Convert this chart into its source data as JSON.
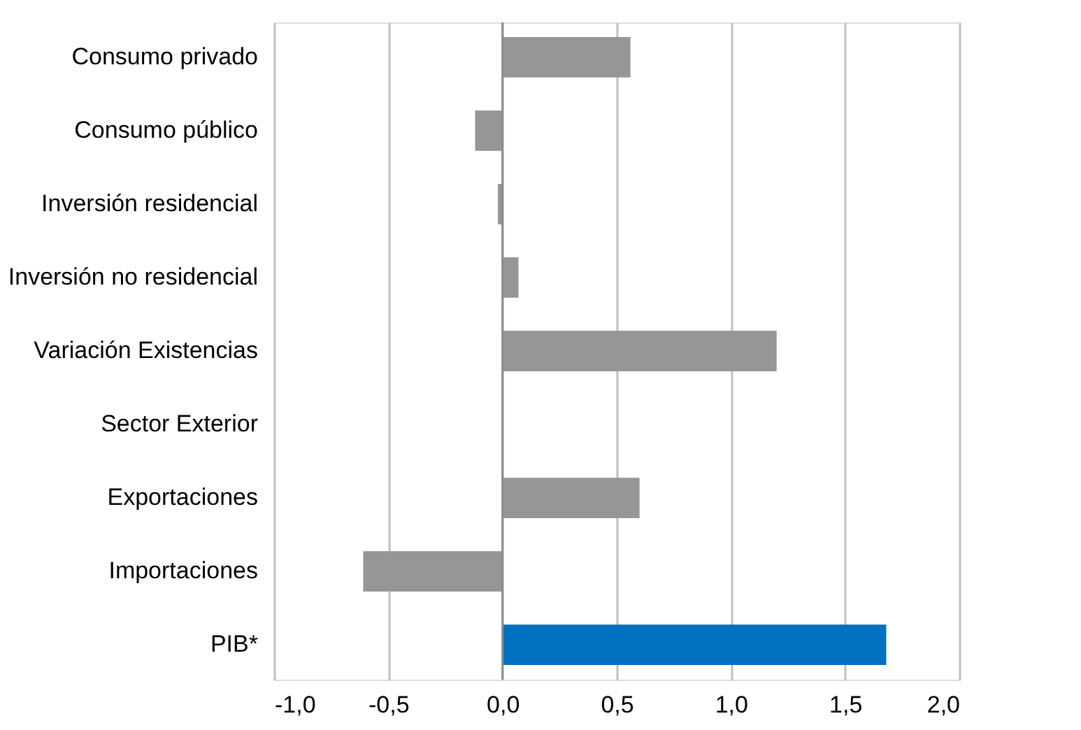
{
  "chart_data": {
    "type": "bar",
    "orientation": "horizontal",
    "categories": [
      "Consumo privado",
      "Consumo público",
      "Inversión residencial",
      "Inversión no residencial",
      "Variación Existencias",
      "Sector Exterior",
      "Exportaciones",
      "Importaciones",
      "PIB*"
    ],
    "values": [
      0.56,
      -0.12,
      -0.02,
      0.07,
      1.2,
      0,
      0.6,
      -0.61,
      1.68
    ],
    "colors": [
      "#969696",
      "#969696",
      "#969696",
      "#969696",
      "#969696",
      "#969696",
      "#969696",
      "#969696",
      "#0070c0"
    ],
    "xlim": [
      -1.0,
      2.0
    ],
    "xticks": [
      {
        "value": -1.0,
        "label": "-1,0"
      },
      {
        "value": -0.5,
        "label": "-0,5"
      },
      {
        "value": 0,
        "label": "0,0"
      },
      {
        "value": 0.5,
        "label": "0,5"
      },
      {
        "value": 1.0,
        "label": "1,0"
      },
      {
        "value": 1.5,
        "label": "1,5"
      },
      {
        "value": 2.0,
        "label": "2,0"
      }
    ],
    "grid": "x"
  }
}
